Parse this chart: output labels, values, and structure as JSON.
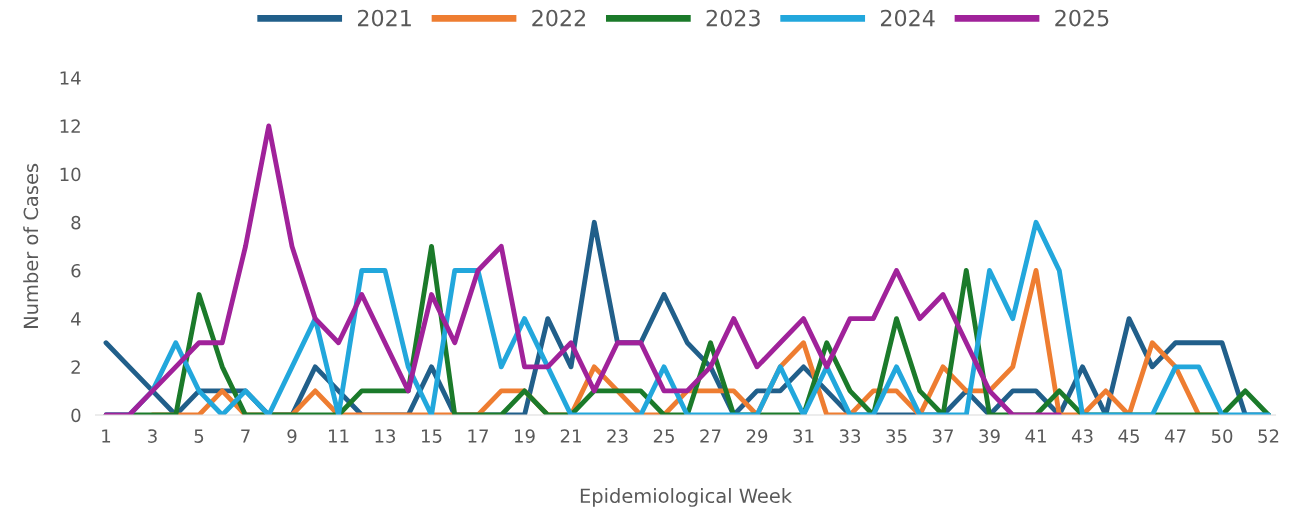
{
  "chart_data": {
    "type": "line",
    "xlabel": "Epidemiological Week",
    "ylabel": "Number of Cases",
    "categories": [
      "1",
      null,
      "3",
      null,
      "5",
      null,
      "7",
      null,
      "9",
      null,
      "11",
      null,
      "13",
      null,
      "15",
      null,
      "17",
      null,
      "19",
      null,
      "21",
      null,
      "23",
      null,
      "25",
      null,
      "27",
      null,
      "29",
      null,
      "31",
      null,
      "33",
      null,
      "35",
      null,
      "37",
      null,
      "39",
      null,
      "41",
      null,
      "43",
      null,
      "45",
      null,
      "47",
      null,
      "50",
      null,
      "52"
    ],
    "ylim": [
      0,
      14
    ],
    "yticks": [
      0,
      2,
      4,
      6,
      8,
      10,
      12,
      14
    ],
    "grid": false,
    "legend": "top",
    "marker": "none",
    "line_style": "solid",
    "series": [
      {
        "name": "2021",
        "color": "#215f8a",
        "values": [
          3,
          2,
          1,
          0,
          1,
          1,
          1,
          0,
          0,
          2,
          1,
          0,
          0,
          0,
          2,
          0,
          0,
          0,
          0,
          4,
          2,
          8,
          3,
          3,
          5,
          3,
          2,
          0,
          1,
          1,
          2,
          1,
          0,
          0,
          0,
          0,
          0,
          1,
          0,
          1,
          1,
          0,
          2,
          0,
          4,
          2,
          3,
          3,
          3,
          0,
          0
        ]
      },
      {
        "name": "2022",
        "color": "#ee7d31",
        "values": [
          null,
          null,
          0,
          0,
          0,
          1,
          0,
          0,
          0,
          1,
          0,
          0,
          0,
          0,
          0,
          0,
          0,
          1,
          1,
          0,
          0,
          2,
          1,
          0,
          0,
          1,
          1,
          1,
          0,
          2,
          3,
          0,
          0,
          1,
          1,
          0,
          2,
          1,
          1,
          2,
          6,
          0,
          0,
          1,
          0,
          3,
          2,
          0,
          0,
          null,
          null
        ]
      },
      {
        "name": "2023",
        "color": "#1b7a2a",
        "values": [
          0,
          0,
          0,
          0,
          5,
          2,
          0,
          0,
          0,
          0,
          0,
          1,
          1,
          1,
          7,
          0,
          0,
          0,
          1,
          0,
          0,
          1,
          1,
          1,
          0,
          0,
          3,
          0,
          0,
          0,
          0,
          3,
          1,
          0,
          4,
          1,
          0,
          6,
          0,
          0,
          0,
          1,
          0,
          0,
          0,
          0,
          0,
          0,
          0,
          1,
          0
        ]
      },
      {
        "name": "2024",
        "color": "#22a7dc",
        "values": [
          0,
          0,
          1,
          3,
          1,
          0,
          1,
          0,
          2,
          4,
          0,
          6,
          6,
          2,
          0,
          6,
          6,
          2,
          4,
          2,
          0,
          0,
          0,
          0,
          2,
          0,
          0,
          0,
          0,
          2,
          0,
          2,
          0,
          0,
          2,
          0,
          0,
          0,
          6,
          4,
          8,
          6,
          0,
          0,
          0,
          0,
          2,
          2,
          0,
          0,
          0
        ]
      },
      {
        "name": "2025",
        "color": "#a0229a",
        "values": [
          0,
          0,
          1,
          2,
          3,
          3,
          7,
          12,
          7,
          4,
          3,
          5,
          3,
          1,
          5,
          3,
          6,
          7,
          2,
          2,
          3,
          1,
          3,
          3,
          1,
          1,
          2,
          4,
          2,
          3,
          4,
          2,
          4,
          4,
          6,
          4,
          5,
          3,
          1,
          0,
          0,
          0,
          null,
          null,
          null,
          null,
          null,
          null,
          null,
          null,
          null
        ]
      }
    ]
  }
}
